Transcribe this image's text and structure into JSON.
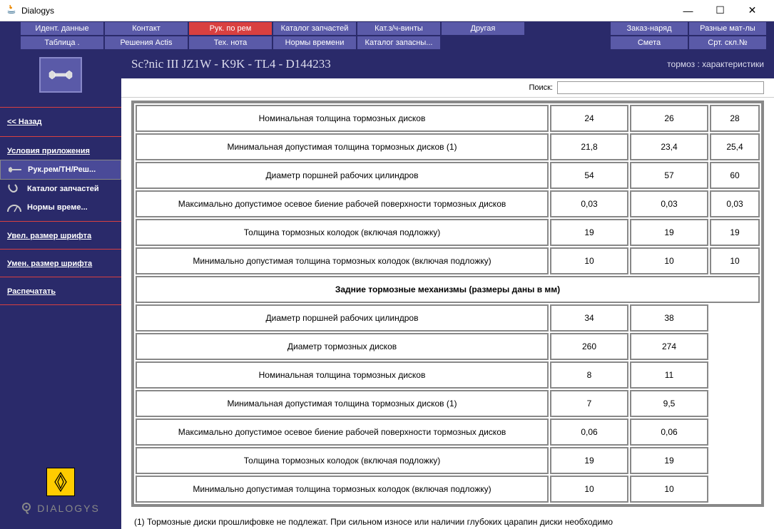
{
  "window": {
    "title": "Dialogys",
    "min": "—",
    "max": "☐",
    "close": "✕"
  },
  "menu": {
    "row1": [
      "Идент. данные",
      "Контакт",
      "Рук. по рем",
      "Каталог запчастей",
      "Кат.з/ч-винты",
      "Другая"
    ],
    "row1_right": [
      "Заказ-наряд",
      "Разные мат-лы"
    ],
    "row2": [
      "Таблица .",
      "Решения Actis",
      "Тех. нота",
      "Нормы времени",
      "Каталог запасны..."
    ],
    "row2_right": [
      "Смета",
      "Срт. скл.№"
    ],
    "active_index": 2
  },
  "sidebar": {
    "back": "<< Назад",
    "conditions": "Условия приложения",
    "items": [
      {
        "label": "Рук.рем/ТН/Реш..."
      },
      {
        "label": "Каталог запчастей"
      },
      {
        "label": "Нормы време..."
      }
    ],
    "inc_font": "Увел. размер шрифта",
    "dec_font": "Умен. размер шрифта",
    "print": "Распечатать",
    "dialogys": "DIALOGYS"
  },
  "content": {
    "title": "Sc?nic III JZ1W - K9K - TL4 - D144233",
    "subtitle": "тормоз : характеристики",
    "search_label": "Поиск:",
    "search_value": ""
  },
  "table_front": {
    "rows": [
      {
        "label": "Номинальная толщина тормозных дисков",
        "vals": [
          "24",
          "26",
          "28"
        ]
      },
      {
        "label": "Минимальная допустимая толщина тормозных дисков (1)",
        "vals": [
          "21,8",
          "23,4",
          "25,4"
        ]
      },
      {
        "label": "Диаметр поршней рабочих цилиндров",
        "vals": [
          "54",
          "57",
          "60"
        ]
      },
      {
        "label": "Максимально допустимое осевое биение рабочей поверхности тормозных дисков",
        "vals": [
          "0,03",
          "0,03",
          "0,03"
        ]
      },
      {
        "label": "Толщина тормозных колодок (включая подложку)",
        "vals": [
          "19",
          "19",
          "19"
        ]
      },
      {
        "label": "Минимально допустимая толщина тормозных колодок (включая подложку)",
        "vals": [
          "10",
          "10",
          "10"
        ]
      }
    ]
  },
  "section_header": "Задние тормозные механизмы (размеры даны в мм)",
  "table_rear": {
    "rows": [
      {
        "label": "Диаметр поршней рабочих цилиндров",
        "vals": [
          "34",
          "38"
        ]
      },
      {
        "label": "Диаметр тормозных дисков",
        "vals": [
          "260",
          "274"
        ]
      },
      {
        "label": "Номинальная толщина тормозных дисков",
        "vals": [
          "8",
          "11"
        ]
      },
      {
        "label": "Минимальная допустимая толщина тормозных дисков (1)",
        "vals": [
          "7",
          "9,5"
        ]
      },
      {
        "label": "Максимально допустимое осевое биение рабочей поверхности тормозных дисков",
        "vals": [
          "0,06",
          "0,06"
        ]
      },
      {
        "label": "Толщина тормозных колодок (включая подложку)",
        "vals": [
          "19",
          "19"
        ]
      },
      {
        "label": "Минимально допустимая толщина тормозных колодок (включая подложку)",
        "vals": [
          "10",
          "10"
        ]
      }
    ]
  },
  "footnote": "(1) Тормозные диски прошлифовке не подлежат. При сильном износе или наличии глубоких царапин диски необходимо",
  "colors": {
    "menu_bg": "#5a5aa8",
    "menu_active": "#d94040",
    "frame": "#2a2a6a",
    "border": "#888888"
  }
}
